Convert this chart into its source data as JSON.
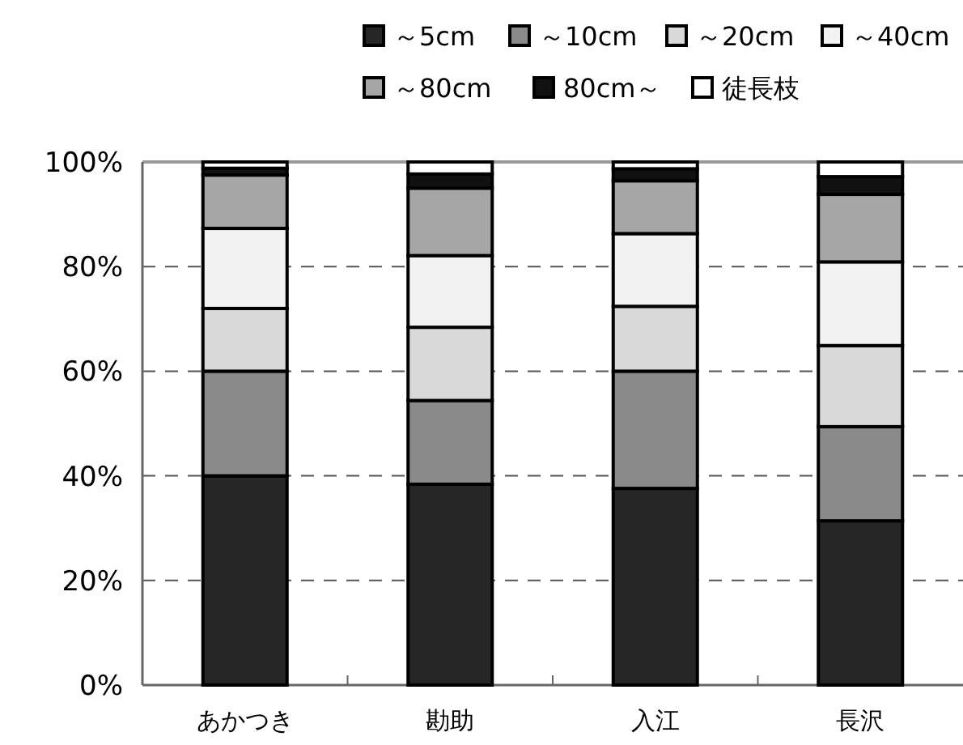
{
  "chart_data": {
    "type": "bar",
    "stacked": true,
    "categories": [
      "あかつき",
      "勘助",
      "入江",
      "長沢"
    ],
    "series": [
      {
        "name": "～5cm",
        "color": "#262626",
        "values": [
          40,
          38.4,
          37.6,
          31.4
        ]
      },
      {
        "name": "～10cm",
        "color": "#8a8a8a",
        "values": [
          20,
          16,
          22.4,
          18
        ]
      },
      {
        "name": "～20cm",
        "color": "#d9d9d9",
        "values": [
          12,
          14,
          12.4,
          15.5
        ]
      },
      {
        "name": "～40cm",
        "color": "#f2f2f2",
        "values": [
          15.3,
          13.7,
          13.9,
          16
        ]
      },
      {
        "name": "～80cm",
        "color": "#a6a6a6",
        "values": [
          10.2,
          12.9,
          10.1,
          12.9
        ]
      },
      {
        "name": "80cm～",
        "color": "#111111",
        "values": [
          1.3,
          2.7,
          2.3,
          3.4
        ]
      },
      {
        "name": "徒長枝",
        "color": "#ffffff",
        "values": [
          1.2,
          2.3,
          1.3,
          2.8
        ]
      }
    ],
    "ylim": [
      0,
      100
    ],
    "yticks": [
      {
        "value": 0,
        "label": "0%"
      },
      {
        "value": 20,
        "label": "20%"
      },
      {
        "value": 40,
        "label": "40%"
      },
      {
        "value": 60,
        "label": "60%"
      },
      {
        "value": 80,
        "label": "80%"
      },
      {
        "value": 100,
        "label": "100%"
      }
    ],
    "grid": "y",
    "legend": "top"
  }
}
